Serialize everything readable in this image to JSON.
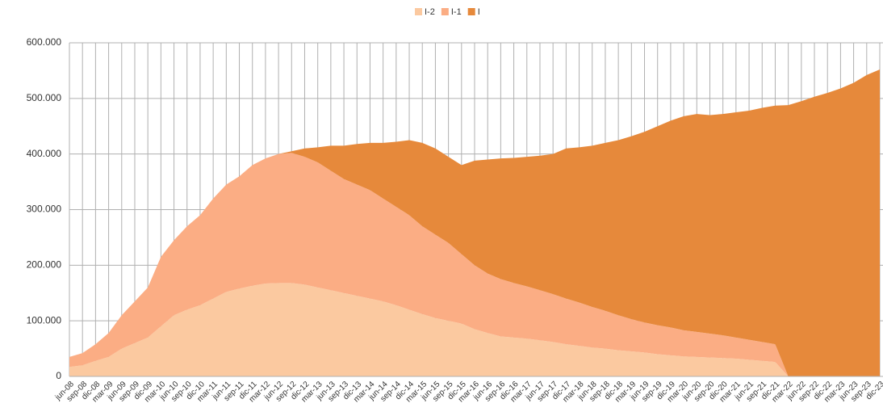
{
  "chart_data": {
    "type": "stacked_area",
    "categories": [
      "jun-08",
      "sep-08",
      "dic-08",
      "mar-09",
      "jun-09",
      "sep-09",
      "dic-09",
      "mar-10",
      "jun-10",
      "sep-10",
      "dic-10",
      "mar-11",
      "jun-11",
      "sep-11",
      "dic-11",
      "mar-12",
      "jun-12",
      "sep-12",
      "dic-12",
      "mar-13",
      "jun-13",
      "sep-13",
      "dic-13",
      "mar-14",
      "jun-14",
      "sep-14",
      "dic-14",
      "mar-15",
      "jun-15",
      "sep-15",
      "dic-15",
      "mar-16",
      "jun-16",
      "sep-16",
      "dic-16",
      "mar-17",
      "jun-17",
      "sep-17",
      "dic-17",
      "mar-18",
      "jun-18",
      "sep-18",
      "dic-18",
      "mar-19",
      "jun-19",
      "sep-19",
      "dic-19",
      "mar-20",
      "jun-20",
      "sep-20",
      "dic-20",
      "mar-21",
      "jun-21",
      "sep-21",
      "dic-21",
      "mar-22",
      "jun-22",
      "sep-22",
      "dic-22",
      "mar-23",
      "jun-23",
      "sep-23",
      "dic-23"
    ],
    "series": [
      {
        "name": "I-2",
        "color": "#fbc9a0",
        "values": [
          17000,
          20000,
          28000,
          35000,
          50000,
          60000,
          70000,
          90000,
          110000,
          120000,
          128000,
          140000,
          152000,
          158000,
          163000,
          167000,
          168000,
          168000,
          165000,
          160000,
          155000,
          150000,
          145000,
          140000,
          135000,
          128000,
          120000,
          112000,
          105000,
          100000,
          95000,
          85000,
          78000,
          72000,
          70000,
          68000,
          65000,
          62000,
          58000,
          55000,
          52000,
          50000,
          47000,
          45000,
          43000,
          40000,
          38000,
          36000,
          35000,
          34000,
          33000,
          32000,
          30000,
          28000,
          26000,
          0,
          0,
          0,
          0,
          0,
          0,
          0,
          0
        ]
      },
      {
        "name": "I-1",
        "color": "#fbad84",
        "values": [
          18000,
          22000,
          30000,
          43000,
          60000,
          75000,
          90000,
          125000,
          135000,
          150000,
          162000,
          180000,
          193000,
          202000,
          217000,
          225000,
          232000,
          234000,
          230000,
          225000,
          215000,
          205000,
          200000,
          195000,
          185000,
          177000,
          170000,
          158000,
          150000,
          140000,
          125000,
          115000,
          107000,
          103000,
          98000,
          94000,
          90000,
          86000,
          82000,
          78000,
          73000,
          68000,
          63000,
          58000,
          54000,
          52000,
          50000,
          47000,
          45000,
          43000,
          41000,
          38000,
          36000,
          34000,
          32000,
          0,
          0,
          0,
          0,
          0,
          0,
          0,
          0
        ]
      },
      {
        "name": "I",
        "color": "#e6893b",
        "values": [
          0,
          0,
          0,
          0,
          0,
          0,
          0,
          0,
          0,
          0,
          0,
          0,
          0,
          0,
          0,
          0,
          0,
          3000,
          15000,
          27000,
          45000,
          60000,
          73000,
          85000,
          100000,
          117000,
          135000,
          150000,
          155000,
          155000,
          160000,
          188000,
          205000,
          217000,
          225000,
          233000,
          242000,
          252000,
          270000,
          279000,
          290000,
          302000,
          315000,
          329000,
          343000,
          358000,
          372000,
          385000,
          392000,
          393000,
          398000,
          405000,
          412000,
          421000,
          429000,
          488000,
          495000,
          503000,
          510000,
          518000,
          528000,
          542000,
          552000
        ]
      }
    ],
    "ylim": [
      0,
      600000
    ],
    "yticks": [
      0,
      {
        "value": 100000,
        "label": "100.000"
      },
      {
        "value": 200000,
        "label": "200.000"
      },
      {
        "value": 300000,
        "label": "300.000"
      },
      {
        "value": 400000,
        "label": "400.000"
      },
      {
        "value": 500000,
        "label": "500.000"
      },
      {
        "value": 600000,
        "label": "600.000"
      }
    ],
    "grid": true,
    "legend": "top"
  }
}
